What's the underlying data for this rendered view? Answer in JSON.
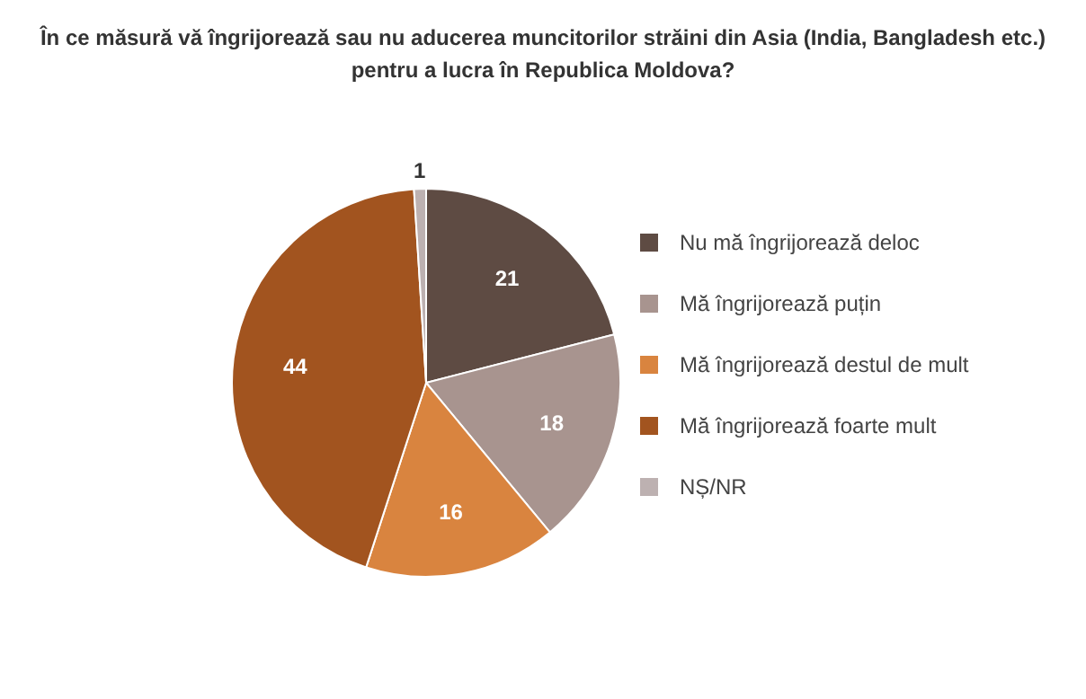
{
  "chart_data": {
    "type": "pie",
    "title": "În ce măsură vă îngrijorează sau nu aducerea muncitorilor străini din Asia (India, Bangladesh etc.) pentru a lucra în Republica Moldova?",
    "categories": [
      "Nu mă îngrijorează deloc",
      "Mă îngrijorează puțin",
      "Mă îngrijorează destul de mult",
      "Mă îngrijorează foarte mult",
      "NȘ/NR"
    ],
    "values": [
      21,
      18,
      16,
      44,
      1
    ],
    "colors": [
      "#5e4b43",
      "#a8948f",
      "#d9843f",
      "#a2541f",
      "#bdb1b1"
    ],
    "data_labels": true,
    "legend": "right"
  }
}
